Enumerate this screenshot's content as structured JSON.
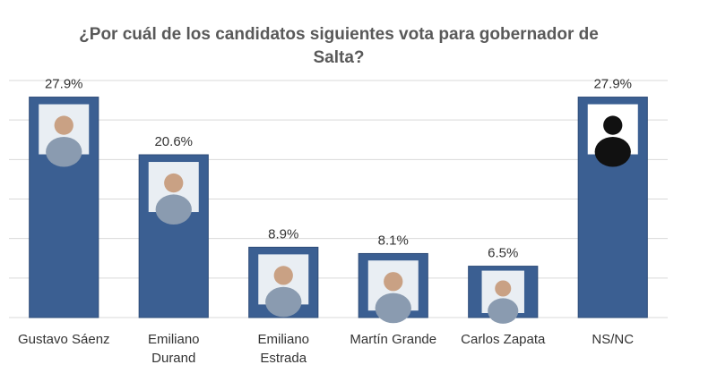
{
  "chart_data": {
    "type": "bar",
    "title": "¿Por cuál de los candidatos siguientes vota para gobernador de\nSalta?",
    "categories": [
      "Gustavo Sáenz",
      "Emiliano\nDurand",
      "Emiliano\nEstrada",
      "Martín Grande",
      "Carlos Zapata",
      "NS/NC"
    ],
    "values": [
      27.9,
      20.6,
      8.9,
      8.1,
      6.5,
      27.9
    ],
    "value_labels": [
      "27.9%",
      "20.6%",
      "8.9%",
      "8.1%",
      "6.5%",
      "27.9%"
    ],
    "color": "#3b5f92",
    "ylim": [
      0,
      30
    ],
    "yticks": [
      0,
      5,
      10,
      15,
      20,
      25,
      30
    ],
    "grid": true
  }
}
